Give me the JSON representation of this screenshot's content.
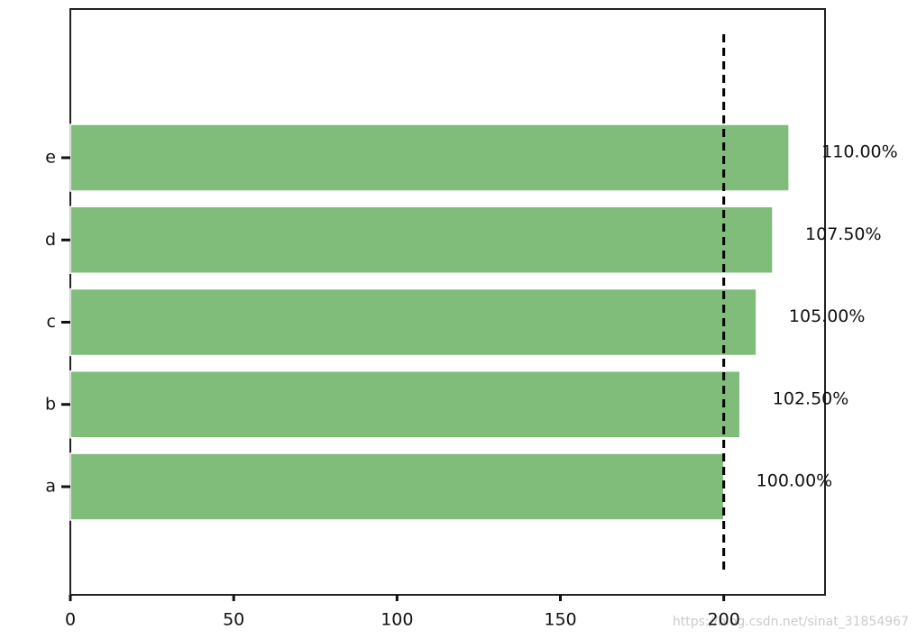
{
  "chart_data": {
    "type": "barh",
    "categories": [
      "a",
      "b",
      "c",
      "d",
      "e"
    ],
    "values": [
      200,
      205,
      210,
      215,
      220
    ],
    "value_labels": [
      "100.00%",
      "102.50%",
      "105.00%",
      "107.50%",
      "110.00%"
    ],
    "color": "#80bd7b",
    "reference_line": 200,
    "xlim": [
      0,
      231
    ],
    "xticks": [
      0,
      50,
      100,
      150,
      200
    ],
    "watermark": "https://blog.csdn.net/sinat_31854967"
  }
}
